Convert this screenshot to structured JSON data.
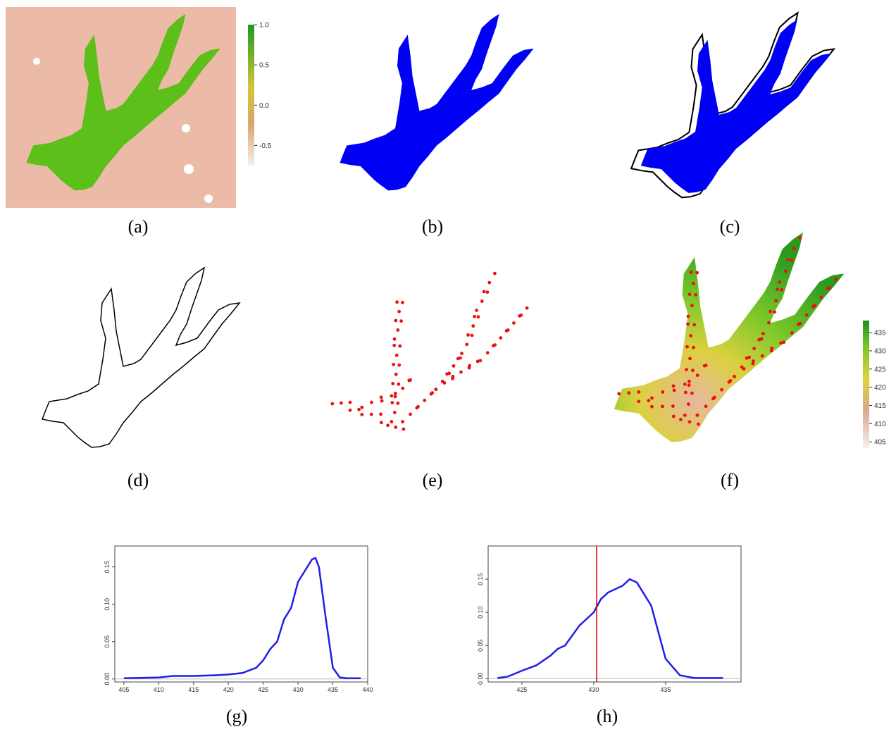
{
  "panels": {
    "labels": [
      "(a)",
      "(b)",
      "(c)",
      "(d)",
      "(e)",
      "(f)",
      "(g)",
      "(h)"
    ]
  },
  "colorbar_a": {
    "lim": [
      -0.75,
      1.0
    ],
    "ticks": [
      {
        "value": 1.0,
        "label": "1.0"
      },
      {
        "value": 0.5,
        "label": "0.5"
      },
      {
        "value": 0,
        "label": "0.0"
      },
      {
        "value": -0.5,
        "label": "-0.5"
      }
    ]
  },
  "colorbar_f": {
    "lim": [
      403.3,
      438.3
    ],
    "ticks": [
      405,
      410,
      415,
      420,
      425,
      430,
      435
    ]
  },
  "chart_data": [
    {
      "type": "line",
      "x": [
        405,
        410,
        412,
        415,
        418,
        420,
        422,
        424,
        425,
        426,
        427,
        428,
        429,
        430,
        431,
        432,
        432.5,
        433,
        434,
        435,
        436,
        437,
        439
      ],
      "series": [
        {
          "color": "#1f1fe6",
          "values": [
            0.001,
            0.002,
            0.004,
            0.004,
            0.005,
            0.006,
            0.008,
            0.015,
            0.025,
            0.04,
            0.05,
            0.08,
            0.095,
            0.13,
            0.145,
            0.16,
            0.162,
            0.15,
            0.08,
            0.015,
            0.002,
            0.001,
            0.001
          ]
        }
      ],
      "xlim": [
        403.7,
        440
      ],
      "xticks": [
        405,
        410,
        415,
        420,
        425,
        430,
        435,
        440
      ],
      "ylim": [
        -0.004,
        0.178
      ],
      "yticks": [
        {
          "value": 0,
          "label": "0.00"
        },
        {
          "value": 0.05,
          "label": "0.05"
        },
        {
          "value": 0.1,
          "label": "0.10"
        },
        {
          "value": 0.15,
          "label": "0.15"
        }
      ]
    },
    {
      "type": "line",
      "x": [
        423.3,
        424,
        425,
        426,
        427,
        427.5,
        428,
        429,
        430,
        430.5,
        431,
        432,
        432.5,
        433,
        434,
        435,
        436,
        437,
        439
      ],
      "series": [
        {
          "color": "#1f1fe6",
          "values": [
            0.001,
            0.003,
            0.012,
            0.02,
            0.035,
            0.045,
            0.05,
            0.08,
            0.1,
            0.12,
            0.13,
            0.14,
            0.15,
            0.145,
            0.11,
            0.03,
            0.005,
            0.001,
            0.001
          ]
        }
      ],
      "xlim": [
        422.65,
        440.25
      ],
      "xticks": [
        425,
        430,
        435
      ],
      "ylim": [
        -0.005,
        0.2
      ],
      "yticks": [
        {
          "value": 0,
          "label": "0.00"
        },
        {
          "value": 0.05,
          "label": "0.05"
        },
        {
          "value": 0.1,
          "label": "0.10"
        },
        {
          "value": 0.15,
          "label": "0.15"
        }
      ],
      "vline": {
        "x": 430.2,
        "color": "#e00000"
      }
    }
  ]
}
